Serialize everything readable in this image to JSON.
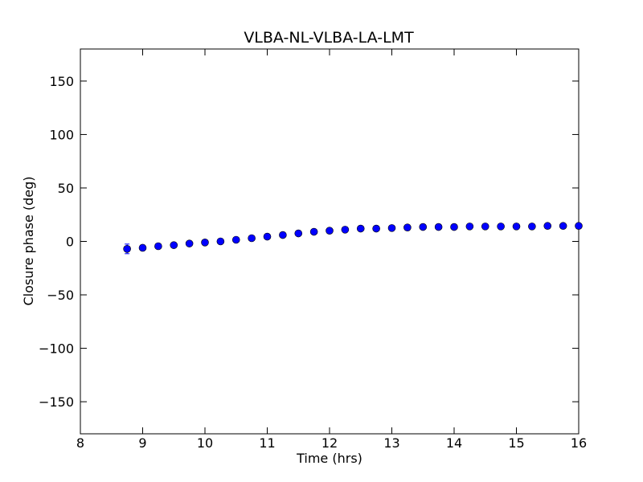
{
  "chart_data": {
    "type": "scatter",
    "title": "VLBA-NL-VLBA-LA-LMT",
    "xlabel": "Time (hrs)",
    "ylabel": "Closure phase (deg)",
    "xlim": [
      8,
      16
    ],
    "ylim": [
      -180,
      180
    ],
    "xticks": [
      8,
      9,
      10,
      11,
      12,
      13,
      14,
      15,
      16
    ],
    "xtick_labels": [
      "8",
      "9",
      "10",
      "11",
      "12",
      "13",
      "14",
      "15",
      "16"
    ],
    "yticks": [
      -150,
      -100,
      -50,
      0,
      50,
      100,
      150
    ],
    "ytick_labels": [
      "−150",
      "−100",
      "−50",
      "0",
      "50",
      "100",
      "150"
    ],
    "grid": false,
    "marker_color": "#0000ff",
    "marker_edge_color": "#000000",
    "series": [
      {
        "x": [
          8.75,
          9.0,
          9.25,
          9.5,
          9.75,
          10.0,
          10.25,
          10.5,
          10.75,
          11.0,
          11.25,
          11.5,
          11.75,
          12.0,
          12.25,
          12.5,
          12.75,
          13.0,
          13.25,
          13.5,
          13.75,
          14.0,
          14.25,
          14.5,
          14.75,
          15.0,
          15.25,
          15.5,
          15.75,
          16.0
        ],
        "y": [
          -7,
          -6,
          -4.5,
          -3.5,
          -2,
          -1,
          0,
          1.5,
          3,
          4.5,
          6,
          7.5,
          9,
          10,
          11,
          12,
          12,
          12.5,
          13,
          13.5,
          13.5,
          13.5,
          14,
          14,
          14,
          14,
          14,
          14.5,
          14.5,
          14.5
        ],
        "yerr": [
          4.5,
          2.5,
          2,
          2,
          2,
          2,
          2,
          2,
          2,
          2,
          2,
          2,
          2,
          2,
          2,
          2,
          2,
          2,
          2,
          2,
          2,
          2,
          2,
          2,
          2,
          2,
          2,
          2,
          2,
          2
        ]
      }
    ]
  }
}
